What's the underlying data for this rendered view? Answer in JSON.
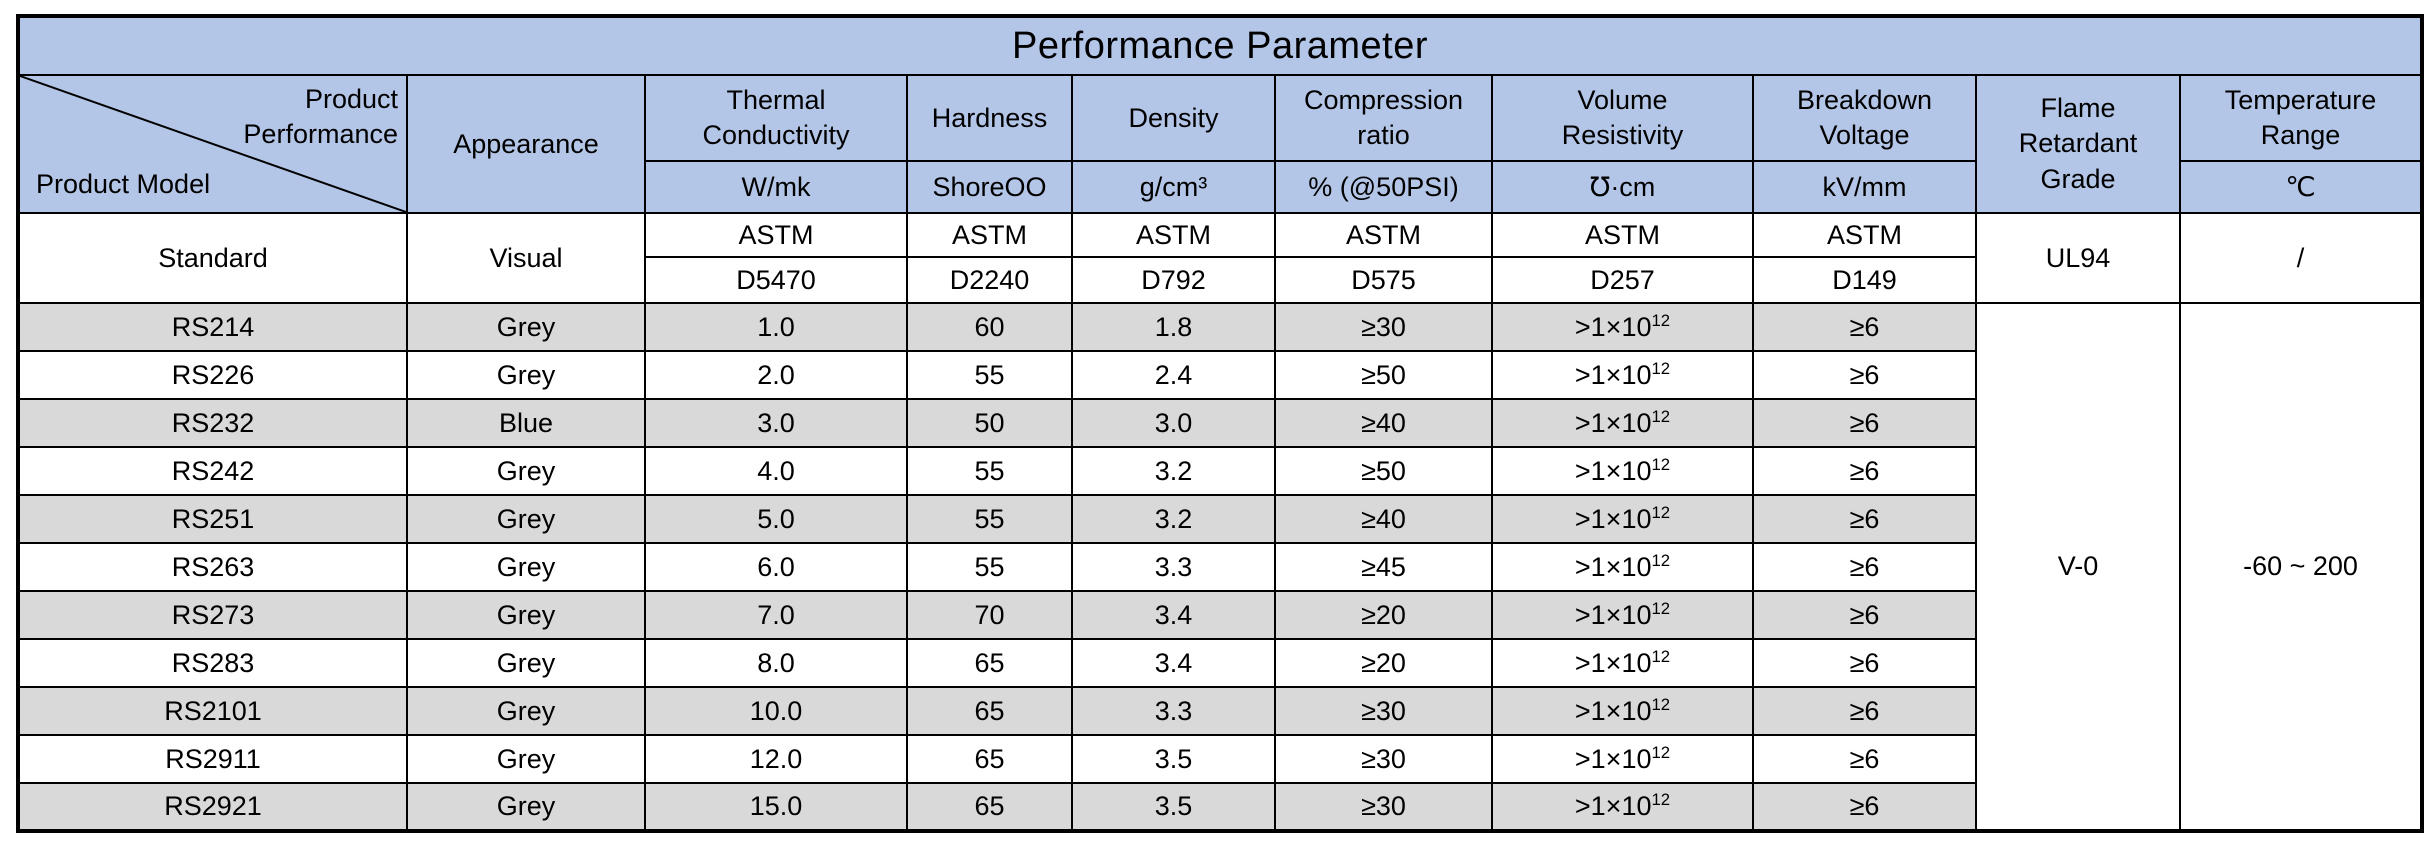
{
  "title": "Performance Parameter",
  "header": {
    "corner": {
      "top": "Product\nPerformance",
      "bottom": "Product Model"
    },
    "columns": {
      "appearance": "Appearance",
      "thermal": "Thermal\nConductivity",
      "hardness": "Hardness",
      "density": "Density",
      "compression": "Compression\nratio",
      "resistivity": "Volume\nResistivity",
      "breakdown": "Breakdown\nVoltage",
      "flame": "Flame\nRetardant\nGrade",
      "temperature": "Temperature\nRange"
    },
    "units": {
      "thermal": "W/mk",
      "hardness": "ShoreOO",
      "density": "g/cm³",
      "compression": "% (@50PSI)",
      "resistivity": "℧·cm",
      "breakdown": "kV/mm",
      "temperature": "℃"
    }
  },
  "standard": {
    "label": "Standard",
    "appearance": "Visual",
    "methods": [
      {
        "org": "ASTM",
        "code": "D5470"
      },
      {
        "org": "ASTM",
        "code": "D2240"
      },
      {
        "org": "ASTM",
        "code": "D792"
      },
      {
        "org": "ASTM",
        "code": "D575"
      },
      {
        "org": "ASTM",
        "code": "D257"
      },
      {
        "org": "ASTM",
        "code": "D149"
      }
    ],
    "flame": "UL94",
    "temperature": "/"
  },
  "rows": [
    {
      "model": "RS214",
      "appearance": "Grey",
      "tc": "1.0",
      "hardness": "60",
      "density": "1.8",
      "compression": "≥30",
      "resistivity": {
        "base": ">1×10",
        "exp": "12"
      },
      "breakdown": "≥6"
    },
    {
      "model": "RS226",
      "appearance": "Grey",
      "tc": "2.0",
      "hardness": "55",
      "density": "2.4",
      "compression": "≥50",
      "resistivity": {
        "base": ">1×10",
        "exp": "12"
      },
      "breakdown": "≥6"
    },
    {
      "model": "RS232",
      "appearance": "Blue",
      "tc": "3.0",
      "hardness": "50",
      "density": "3.0",
      "compression": "≥40",
      "resistivity": {
        "base": ">1×10",
        "exp": "12"
      },
      "breakdown": "≥6"
    },
    {
      "model": "RS242",
      "appearance": "Grey",
      "tc": "4.0",
      "hardness": "55",
      "density": "3.2",
      "compression": "≥50",
      "resistivity": {
        "base": ">1×10",
        "exp": "12"
      },
      "breakdown": "≥6"
    },
    {
      "model": "RS251",
      "appearance": "Grey",
      "tc": "5.0",
      "hardness": "55",
      "density": "3.2",
      "compression": "≥40",
      "resistivity": {
        "base": ">1×10",
        "exp": "12"
      },
      "breakdown": "≥6"
    },
    {
      "model": "RS263",
      "appearance": "Grey",
      "tc": "6.0",
      "hardness": "55",
      "density": "3.3",
      "compression": "≥45",
      "resistivity": {
        "base": ">1×10",
        "exp": "12"
      },
      "breakdown": "≥6"
    },
    {
      "model": "RS273",
      "appearance": "Grey",
      "tc": "7.0",
      "hardness": "70",
      "density": "3.4",
      "compression": "≥20",
      "resistivity": {
        "base": ">1×10",
        "exp": "12"
      },
      "breakdown": "≥6"
    },
    {
      "model": "RS283",
      "appearance": "Grey",
      "tc": "8.0",
      "hardness": "65",
      "density": "3.4",
      "compression": "≥20",
      "resistivity": {
        "base": ">1×10",
        "exp": "12"
      },
      "breakdown": "≥6"
    },
    {
      "model": "RS2101",
      "appearance": "Grey",
      "tc": "10.0",
      "hardness": "65",
      "density": "3.3",
      "compression": "≥30",
      "resistivity": {
        "base": ">1×10",
        "exp": "12"
      },
      "breakdown": "≥6"
    },
    {
      "model": "RS2911",
      "appearance": "Grey",
      "tc": "12.0",
      "hardness": "65",
      "density": "3.5",
      "compression": "≥30",
      "resistivity": {
        "base": ">1×10",
        "exp": "12"
      },
      "breakdown": "≥6"
    },
    {
      "model": "RS2921",
      "appearance": "Grey",
      "tc": "15.0",
      "hardness": "65",
      "density": "3.5",
      "compression": "≥30",
      "resistivity": {
        "base": ">1×10",
        "exp": "12"
      },
      "breakdown": "≥6"
    }
  ],
  "flame_grade": {
    "value": "V-0"
  },
  "temperature_range": {
    "value": "-60 ~ 200"
  },
  "colors": {
    "header_blue": "#b4c6e7",
    "stripe_grey": "#d9d9d9",
    "row_white": "#ffffff",
    "border_black": "#000000",
    "text_black": "#000000"
  }
}
